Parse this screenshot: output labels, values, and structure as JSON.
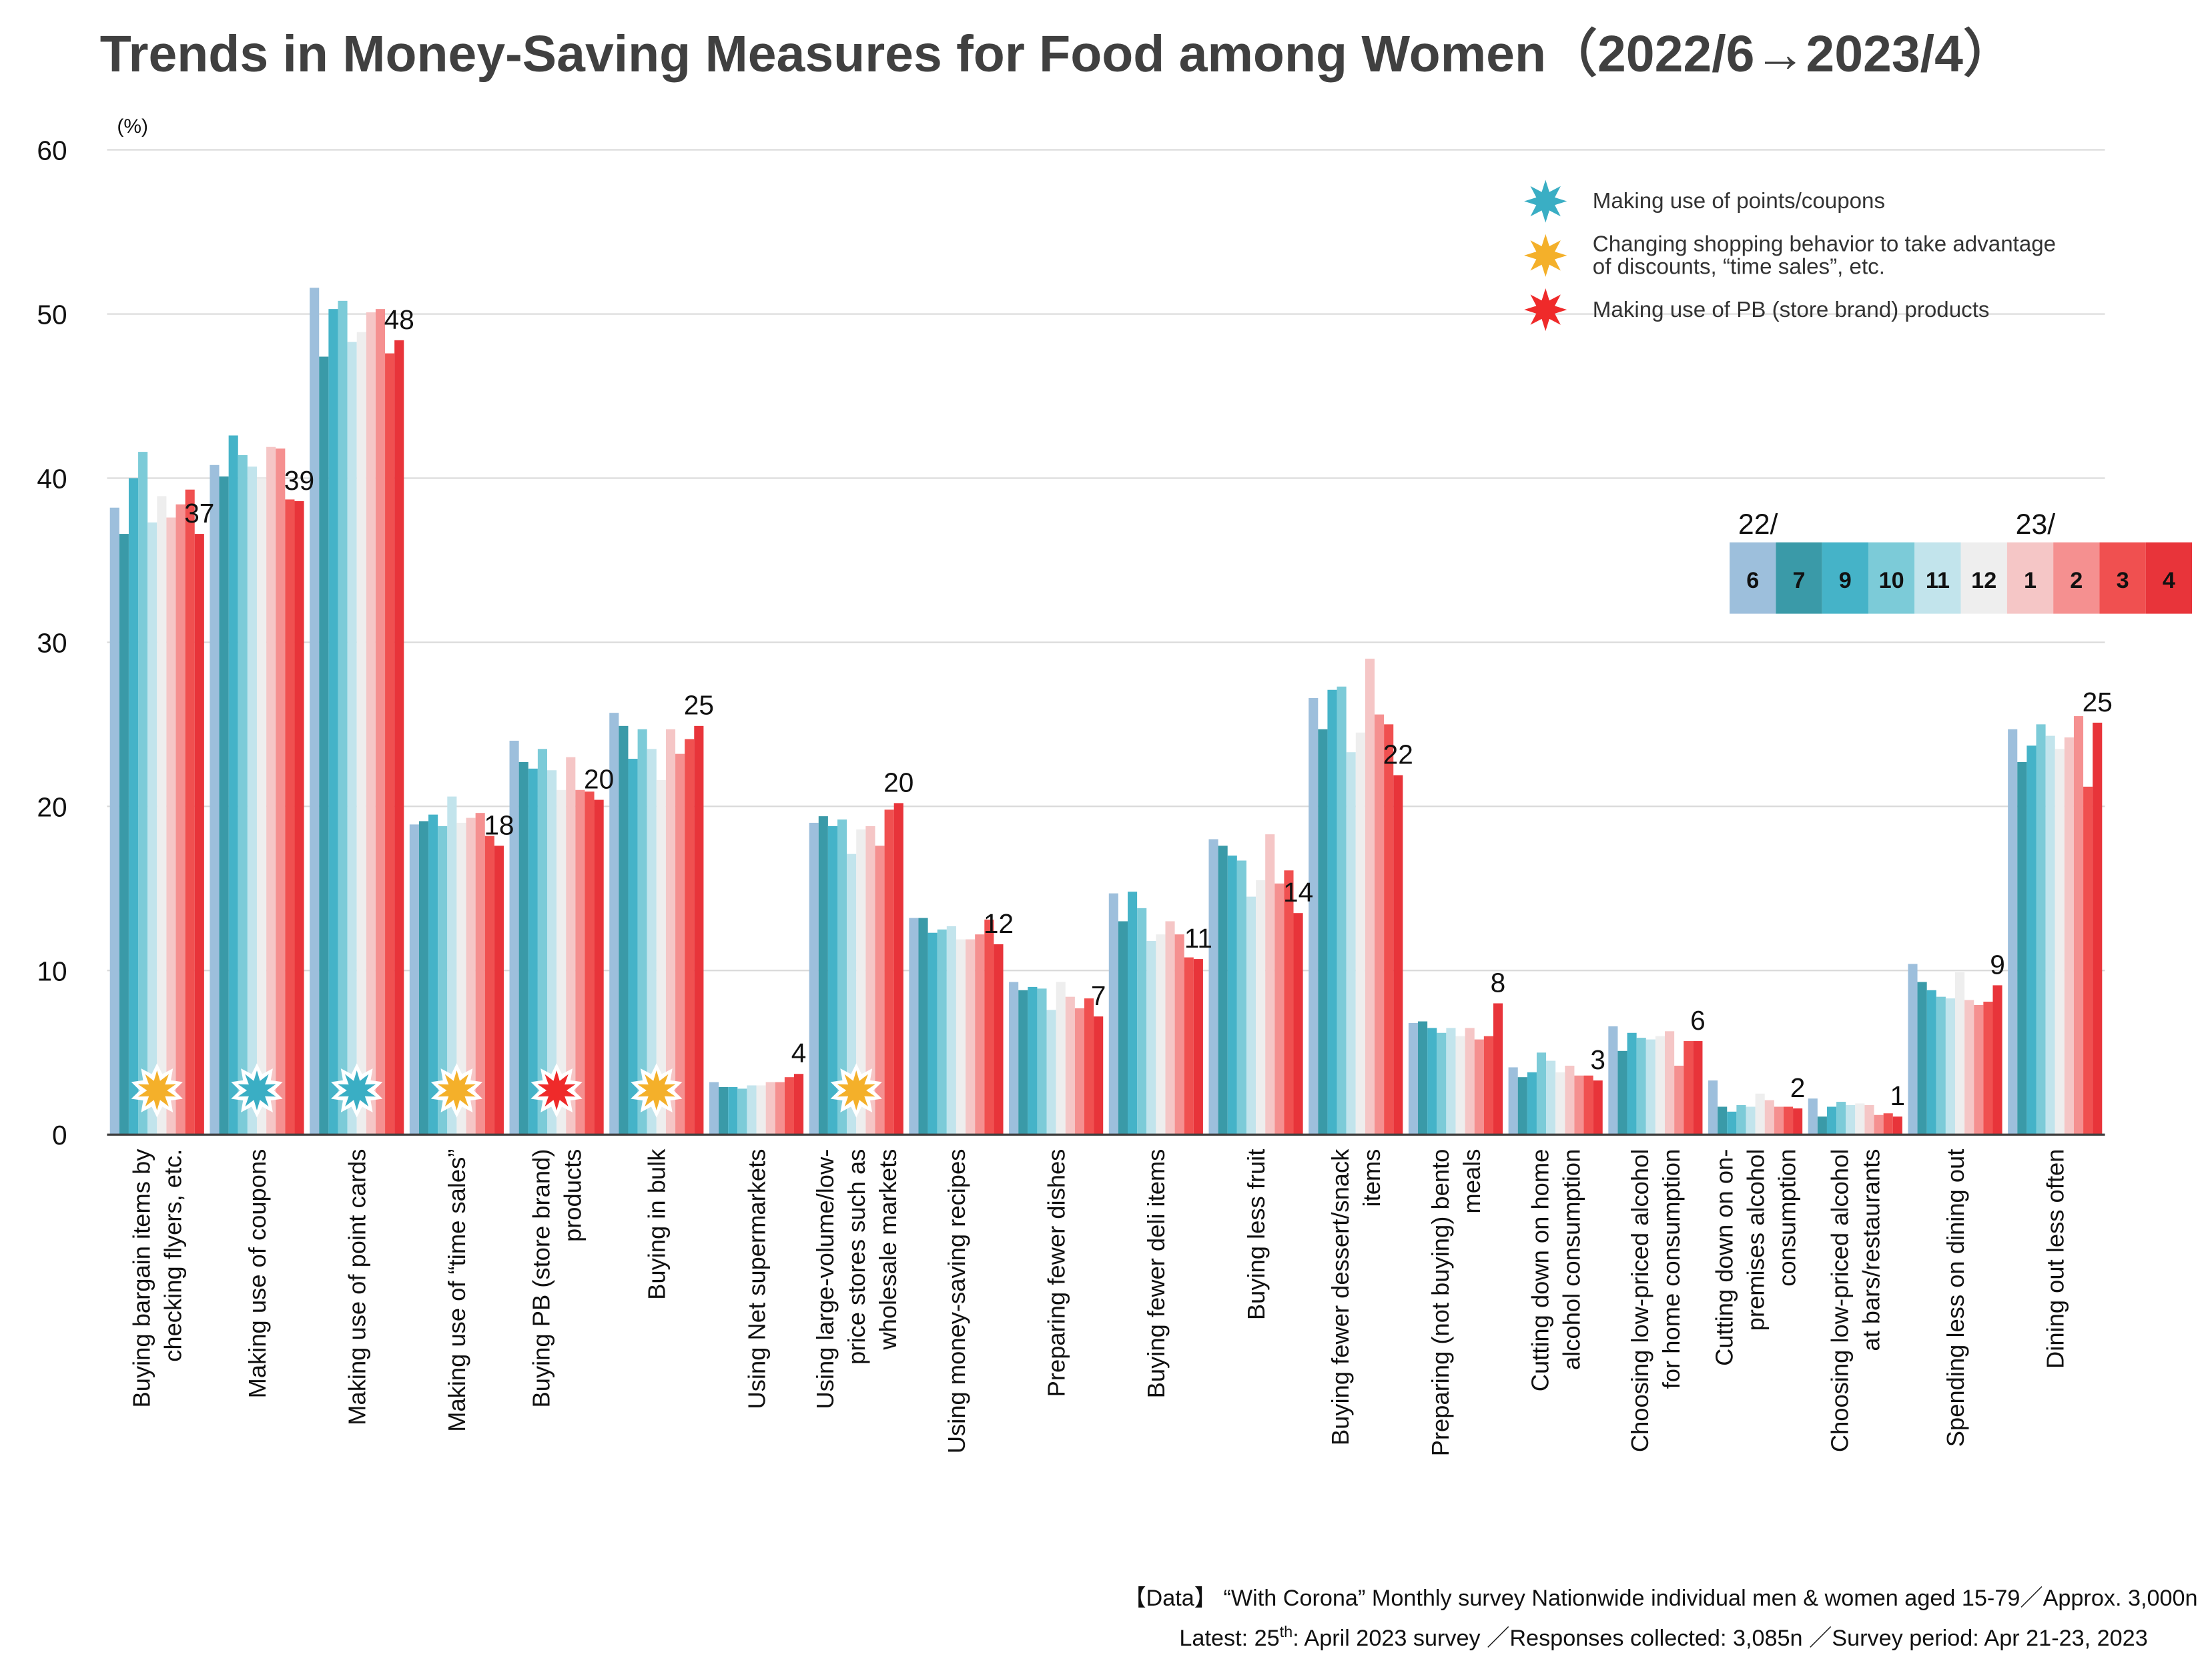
{
  "chart_data": {
    "type": "bar",
    "title": "Trends in Money-Saving Measures for Food among Women（2022/6→2023/4）",
    "y_unit": "(%)",
    "ylim": [
      0,
      60
    ],
    "yticks": [
      0,
      10,
      20,
      30,
      40,
      50,
      60
    ],
    "grid": true,
    "categories": [
      "Buying bargain items by\nchecking flyers, etc.",
      "Making use of coupons",
      "Making use of point cards",
      "Making use of “time sales”",
      "Buying PB (store brand)\nproducts",
      "Buying in bulk",
      "Using Net supermarkets",
      "Using large-volume/low-\nprice stores such as\nwholesale markets",
      "Using money-saving recipes",
      "Preparing fewer dishes",
      "Buying fewer deli items",
      "Buying less fruit",
      "Buying fewer dessert/snack\nitems",
      "Preparing (not buying) bento\nmeals",
      "Cutting down on home\nalcohol consumption",
      "Choosing low-priced alcohol\nfor home consumption",
      "Cutting down on on-\npremises alcohol\nconsumption",
      "Choosing low-priced alcohol\nat bars/restaurants",
      "Spending less on dining out",
      "Dining out less often"
    ],
    "legend_groups": [
      "22/",
      "23/"
    ],
    "series": [
      {
        "name": "6",
        "color": "#9dbfdc",
        "values": [
          38.2,
          40.8,
          51.6,
          18.9,
          24.0,
          25.7,
          3.2,
          19.0,
          13.2,
          9.3,
          14.7,
          18.0,
          26.6,
          6.8,
          4.1,
          6.6,
          3.3,
          2.2,
          10.4,
          24.7
        ]
      },
      {
        "name": "7",
        "color": "#3a9aa8",
        "values": [
          36.6,
          40.1,
          47.4,
          19.1,
          22.7,
          24.9,
          2.9,
          19.4,
          13.2,
          8.8,
          13.0,
          17.6,
          24.7,
          6.9,
          3.5,
          5.1,
          1.7,
          1.1,
          9.3,
          22.7
        ]
      },
      {
        "name": "9",
        "color": "#45b3c8",
        "values": [
          40.0,
          42.6,
          50.3,
          19.5,
          22.3,
          22.9,
          2.9,
          18.8,
          12.3,
          9.0,
          14.8,
          17.0,
          27.1,
          6.5,
          3.8,
          6.2,
          1.4,
          1.7,
          8.8,
          23.7
        ]
      },
      {
        "name": "10",
        "color": "#7ccbd8",
        "values": [
          41.6,
          41.4,
          50.8,
          18.8,
          23.5,
          24.7,
          2.8,
          19.2,
          12.5,
          8.9,
          13.8,
          16.7,
          27.3,
          6.2,
          5.0,
          5.9,
          1.8,
          2.0,
          8.4,
          25.0
        ]
      },
      {
        "name": "11",
        "color": "#c2e4ec",
        "values": [
          37.3,
          40.7,
          48.3,
          20.6,
          22.2,
          23.5,
          3.0,
          17.1,
          12.7,
          7.6,
          11.8,
          14.5,
          23.3,
          6.5,
          4.5,
          5.8,
          1.7,
          1.8,
          8.3,
          24.3
        ]
      },
      {
        "name": "12",
        "color": "#eeeeee",
        "values": [
          38.9,
          40.0,
          48.9,
          19.0,
          21.0,
          21.6,
          3.0,
          18.6,
          11.9,
          9.3,
          12.2,
          15.5,
          24.5,
          6.0,
          3.8,
          6.0,
          2.5,
          1.9,
          9.9,
          23.5
        ]
      },
      {
        "name": "1",
        "color": "#f5c6c6",
        "values": [
          37.6,
          41.9,
          50.1,
          19.3,
          23.0,
          24.7,
          3.2,
          18.8,
          11.9,
          8.4,
          13.0,
          18.3,
          29.0,
          6.5,
          4.2,
          6.3,
          2.1,
          1.8,
          8.2,
          24.2
        ]
      },
      {
        "name": "2",
        "color": "#f59090",
        "values": [
          38.4,
          41.8,
          50.3,
          19.6,
          21.0,
          23.2,
          3.2,
          17.6,
          12.2,
          7.7,
          12.2,
          15.3,
          25.6,
          5.8,
          3.6,
          4.2,
          1.7,
          1.2,
          7.9,
          25.5
        ]
      },
      {
        "name": "3",
        "color": "#f05050",
        "values": [
          39.3,
          38.7,
          47.6,
          18.2,
          20.9,
          24.1,
          3.5,
          19.8,
          13.1,
          8.3,
          10.8,
          16.1,
          25.0,
          6.0,
          3.6,
          5.7,
          1.7,
          1.3,
          8.1,
          21.2
        ]
      },
      {
        "name": "4",
        "color": "#e8343a",
        "values": [
          36.6,
          38.6,
          48.4,
          17.6,
          20.4,
          24.9,
          3.7,
          20.2,
          11.6,
          7.2,
          10.7,
          13.5,
          21.9,
          8.0,
          3.3,
          5.7,
          1.6,
          1.1,
          9.1,
          25.1
        ],
        "value_labels": [
          "37",
          "39",
          "48",
          "18",
          "20",
          "25",
          "4",
          "20",
          "12",
          "7",
          "11",
          "14",
          "22",
          "8",
          "3",
          "6",
          "2",
          "1",
          "9",
          "25"
        ]
      }
    ],
    "measure_groups": [
      {
        "label": "Making use of points/coupons",
        "color": "#3aaec4",
        "categories": [
          "Making use of coupons",
          "Making use of point cards"
        ]
      },
      {
        "label": "Changing shopping behavior to take advantage\nof discounts, “time sales”, etc.",
        "color": "#f4b02a",
        "categories": [
          "Buying bargain items by\nchecking flyers, etc.",
          "Making use of “time sales”",
          "Buying in bulk",
          "Using large-volume/low-\nprice stores such as\nwholesale markets"
        ]
      },
      {
        "label": "Making use of PB (store brand) products",
        "color": "#ef2a2a",
        "categories": [
          "Buying PB (store brand)\nproducts"
        ]
      }
    ],
    "source": {
      "line1": "【Data】 “With Corona” Monthly survey  Nationwide individual men & women aged 15-79／Approx. 3,000n",
      "line2_a": "Latest: 25",
      "line2_sup": "th",
      "line2_b": ": April 2023 survey ／Responses collected: 3,085n ／Survey period: Apr 21-23, 2023"
    }
  }
}
